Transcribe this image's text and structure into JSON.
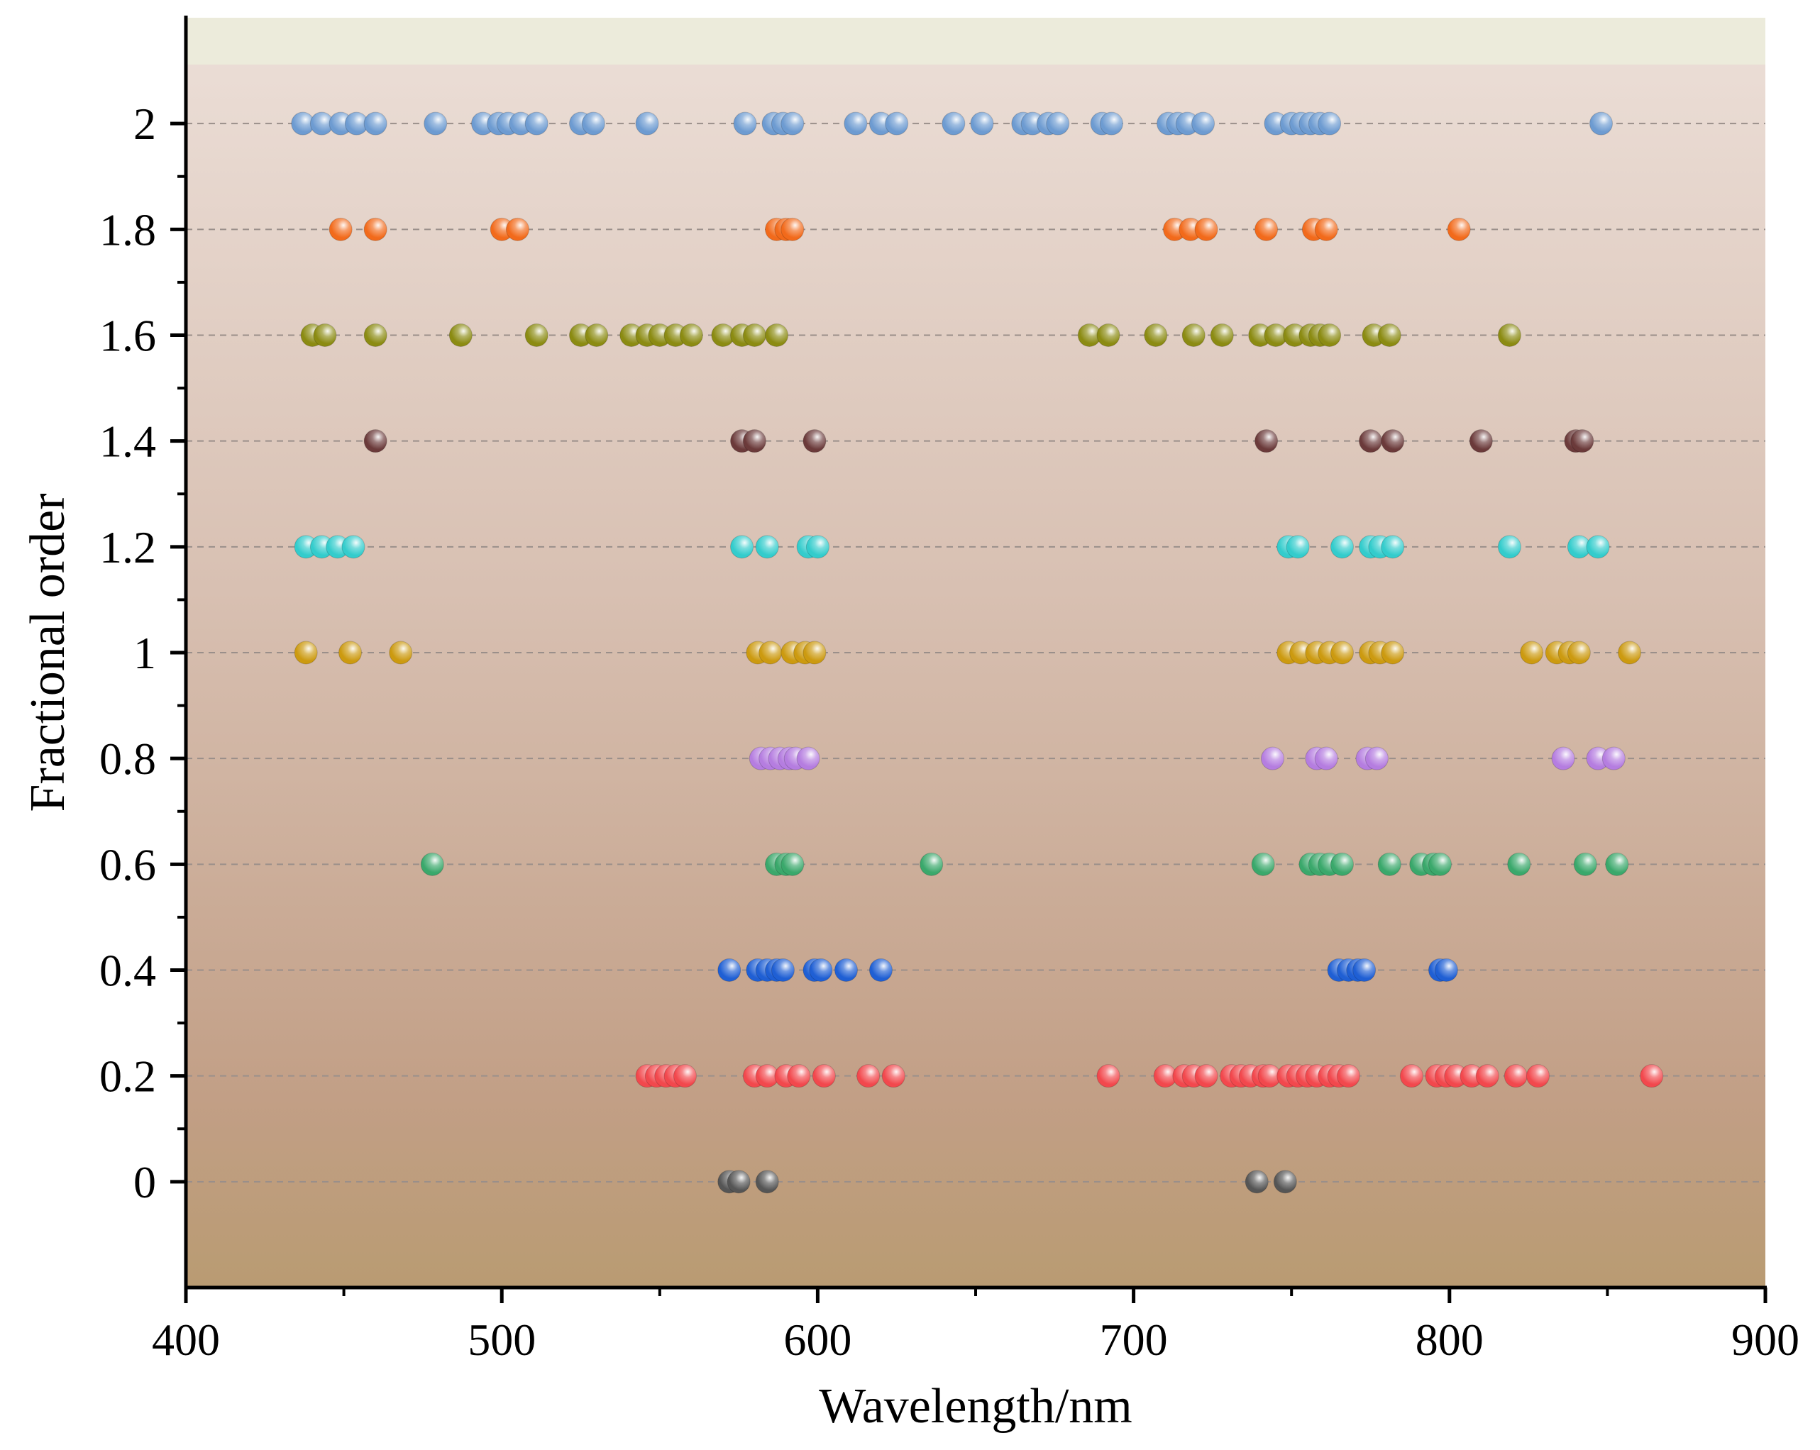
{
  "chart_data": {
    "type": "scatter",
    "xlabel": "Wavelength/nm",
    "ylabel": "Fractional order",
    "xlim": [
      400,
      900
    ],
    "ylim": [
      -0.2,
      2.2
    ],
    "x_ticks": [
      "400",
      "500",
      "600",
      "700",
      "800",
      "900"
    ],
    "y_ticks": [
      "0",
      "0.2",
      "0.4",
      "0.6",
      "0.8",
      "1",
      "1.2",
      "1.4",
      "1.6",
      "1.8",
      "2"
    ],
    "x_tick_values": [
      400,
      500,
      600,
      700,
      800,
      900
    ],
    "y_tick_values": [
      0,
      0.2,
      0.4,
      0.6,
      0.8,
      1,
      1.2,
      1.4,
      1.6,
      1.8,
      2
    ],
    "grid": "horizontal dashed at each y tick",
    "background": "vertical gradient from pale cream at top to tan brown at bottom",
    "series": [
      {
        "y": 2,
        "color": "#6d9bd1",
        "x": [
          437,
          443,
          449,
          454,
          460,
          479,
          494,
          499,
          502,
          506,
          511,
          525,
          529,
          546,
          577,
          586,
          589,
          592,
          612,
          620,
          625,
          643,
          652,
          665,
          668,
          673,
          676,
          690,
          693,
          711,
          714,
          717,
          722,
          745,
          750,
          753,
          756,
          759,
          762,
          848
        ]
      },
      {
        "y": 1.8,
        "color": "#f26a1b",
        "x": [
          449,
          460,
          500,
          505,
          587,
          590,
          592,
          713,
          718,
          723,
          742,
          757,
          761,
          803
        ]
      },
      {
        "y": 1.6,
        "color": "#8b8b12",
        "x": [
          440,
          444,
          460,
          487,
          511,
          525,
          530,
          541,
          546,
          550,
          555,
          560,
          570,
          576,
          580,
          587,
          686,
          692,
          707,
          719,
          728,
          740,
          745,
          751,
          756,
          759,
          762,
          776,
          781,
          819
        ]
      },
      {
        "y": 1.4,
        "color": "#6b3a3a",
        "x": [
          460,
          576,
          580,
          599,
          742,
          775,
          782,
          810,
          840,
          842
        ]
      },
      {
        "y": 1.2,
        "color": "#33cccc",
        "x": [
          438,
          443,
          448,
          453,
          576,
          584,
          597,
          600,
          749,
          752,
          766,
          775,
          778,
          782,
          819,
          841,
          847
        ]
      },
      {
        "y": 1,
        "color": "#cc9a10",
        "x": [
          438,
          452,
          468,
          581,
          585,
          592,
          596,
          599,
          749,
          753,
          758,
          762,
          766,
          775,
          778,
          782,
          826,
          834,
          838,
          841,
          857
        ]
      },
      {
        "y": 0.8,
        "color": "#b57de0",
        "x": [
          582,
          585,
          588,
          591,
          593,
          597,
          744,
          758,
          761,
          774,
          777,
          836,
          847,
          852
        ]
      },
      {
        "y": 0.6,
        "color": "#3aa86b",
        "x": [
          478,
          587,
          590,
          592,
          636,
          741,
          756,
          759,
          762,
          766,
          781,
          791,
          795,
          797,
          822,
          843,
          853
        ]
      },
      {
        "y": 0.4,
        "color": "#1f5fd4",
        "x": [
          572,
          581,
          584,
          587,
          589,
          599,
          601,
          609,
          620,
          765,
          768,
          771,
          773,
          797,
          799
        ]
      },
      {
        "y": 0.2,
        "color": "#f2484d",
        "x": [
          546,
          549,
          552,
          555,
          558,
          580,
          584,
          590,
          594,
          602,
          616,
          624,
          692,
          710,
          716,
          719,
          723,
          731,
          734,
          737,
          741,
          743,
          749,
          752,
          755,
          758,
          762,
          765,
          768,
          788,
          796,
          799,
          802,
          807,
          812,
          821,
          828,
          864
        ]
      },
      {
        "y": 0,
        "color": "#555555",
        "x": [
          572,
          575,
          584,
          739,
          748
        ]
      }
    ]
  }
}
